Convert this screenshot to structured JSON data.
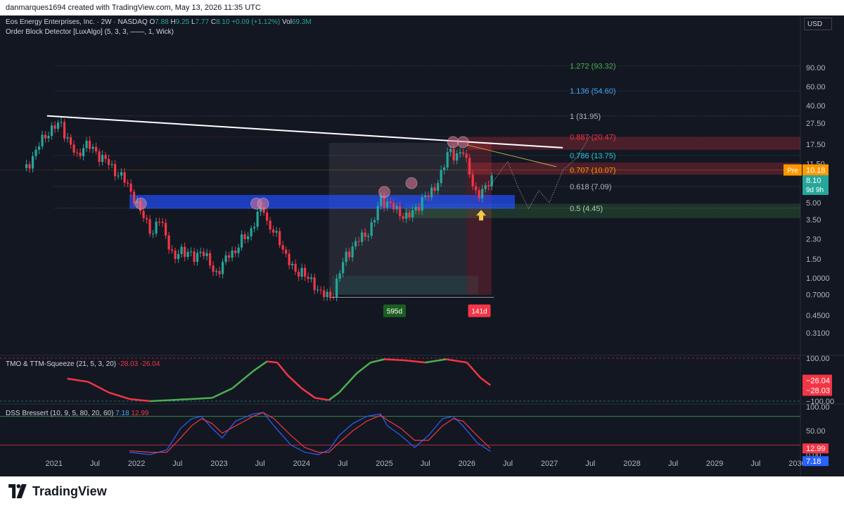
{
  "header": {
    "attribution": "danmarques1694 created with TradingView.com, May 13, 2026 11:35 UTC"
  },
  "legend": {
    "symbol": "Eos Energy Enterprises, Inc. · 2W · NASDAQ",
    "o_label": "O",
    "o_value": "7.88",
    "h_label": "H",
    "h_value": "9.25",
    "l_label": "L",
    "l_value": "7.77",
    "c_label": "C",
    "c_value": "8.10",
    "change": "+0.09 (+1.12%)",
    "vol_label": "Vol",
    "vol_value": "69.3M",
    "indicator": "Order Block Detector [LuxAlgo] (5, 3, 3, ——, 1, Wick)"
  },
  "currency": "USD",
  "footer": {
    "brand": "TradingView"
  },
  "colors": {
    "background": "#131722",
    "up": "#26a69a",
    "down": "#f23645",
    "grid": "#2a2e39",
    "text": "#b2b5be",
    "trendline": "#ffffff"
  },
  "chart_data": [
    {
      "type": "candlestick",
      "name": "price",
      "scale": "log",
      "ylim": [
        0.2,
        150
      ],
      "xlim": [
        "2020-06-01",
        "2030-01-15"
      ],
      "y_ticks": [
        "90.00",
        "60.00",
        "40.00",
        "27.50",
        "17.50",
        "11.50",
        "8.10",
        "5.00",
        "3.50",
        "2.30",
        "1.50",
        "1.0000",
        "0.7000",
        "0.4500",
        "0.3100"
      ],
      "y_tick_values": [
        90,
        60,
        40,
        27.5,
        17.5,
        11.5,
        8.1,
        5,
        3.5,
        2.3,
        1.5,
        1,
        0.7,
        0.45,
        0.31
      ],
      "x_ticks": [
        {
          "label": "2021",
          "date": "2021-01-01"
        },
        {
          "label": "Jul",
          "date": "2021-07-01"
        },
        {
          "label": "2022",
          "date": "2022-01-01"
        },
        {
          "label": "Jul",
          "date": "2022-07-01"
        },
        {
          "label": "2023",
          "date": "2023-01-01"
        },
        {
          "label": "Jul",
          "date": "2023-07-01"
        },
        {
          "label": "2024",
          "date": "2024-01-01"
        },
        {
          "label": "Jul",
          "date": "2024-07-01"
        },
        {
          "label": "2025",
          "date": "2025-01-01"
        },
        {
          "label": "Jul",
          "date": "2025-07-01"
        },
        {
          "label": "2026",
          "date": "2026-01-01"
        },
        {
          "label": "Jul",
          "date": "2026-07-01"
        },
        {
          "label": "2027",
          "date": "2027-01-01"
        },
        {
          "label": "Jul",
          "date": "2027-07-01"
        },
        {
          "label": "2028",
          "date": "2028-01-01"
        },
        {
          "label": "Jul",
          "date": "2028-07-01"
        },
        {
          "label": "2029",
          "date": "2029-01-01"
        },
        {
          "label": "Jul",
          "date": "2029-07-01"
        },
        {
          "label": "2030",
          "date": "2030-01-01"
        }
      ],
      "close_path": [
        [
          "2020-09-01",
          10.5
        ],
        [
          "2020-11-01",
          18
        ],
        [
          "2020-12-15",
          24
        ],
        [
          "2021-02-01",
          27
        ],
        [
          "2021-03-15",
          17
        ],
        [
          "2021-04-15",
          13
        ],
        [
          "2021-05-15",
          18
        ],
        [
          "2021-07-01",
          15
        ],
        [
          "2021-08-15",
          12.5
        ],
        [
          "2021-09-15",
          10.5
        ],
        [
          "2021-11-01",
          8.5
        ],
        [
          "2021-12-15",
          6
        ],
        [
          "2022-01-15",
          4.2
        ],
        [
          "2022-02-15",
          3.3
        ],
        [
          "2022-03-15",
          2.6
        ],
        [
          "2022-04-15",
          3.6
        ],
        [
          "2022-05-15",
          2.4
        ],
        [
          "2022-06-15",
          1.4
        ],
        [
          "2022-07-15",
          1.9
        ],
        [
          "2022-08-15",
          1.7
        ],
        [
          "2022-09-15",
          1.5
        ],
        [
          "2022-10-15",
          1.9
        ],
        [
          "2022-11-15",
          1.4
        ],
        [
          "2022-12-15",
          1.1
        ],
        [
          "2023-01-15",
          1.3
        ],
        [
          "2023-02-15",
          1.7
        ],
        [
          "2023-03-15",
          1.8
        ],
        [
          "2023-04-15",
          2.3
        ],
        [
          "2023-05-15",
          2.6
        ],
        [
          "2023-06-15",
          3.6
        ],
        [
          "2023-07-15",
          4.8
        ],
        [
          "2023-08-01",
          3.3
        ],
        [
          "2023-09-01",
          2.6
        ],
        [
          "2023-10-01",
          2.1
        ],
        [
          "2023-11-01",
          1.5
        ],
        [
          "2023-12-01",
          1.1
        ],
        [
          "2024-01-01",
          1.2
        ],
        [
          "2024-02-01",
          0.95
        ],
        [
          "2024-03-01",
          0.85
        ],
        [
          "2024-04-01",
          0.72
        ],
        [
          "2024-05-01",
          0.65
        ],
        [
          "2024-05-20",
          0.74
        ],
        [
          "2024-06-15",
          1.1
        ],
        [
          "2024-07-15",
          1.6
        ],
        [
          "2024-08-15",
          2.0
        ],
        [
          "2024-09-15",
          2.3
        ],
        [
          "2024-10-15",
          2.6
        ],
        [
          "2024-11-15",
          3.3
        ],
        [
          "2024-12-15",
          5.5
        ],
        [
          "2025-01-15",
          5.0
        ],
        [
          "2025-02-15",
          4.4
        ],
        [
          "2025-03-15",
          4.0
        ],
        [
          "2025-04-15",
          3.6
        ],
        [
          "2025-05-15",
          4.3
        ],
        [
          "2025-06-15",
          5.3
        ],
        [
          "2025-07-15",
          5.8
        ],
        [
          "2025-08-15",
          7.3
        ],
        [
          "2025-09-15",
          9.5
        ],
        [
          "2025-10-15",
          16.5
        ],
        [
          "2025-11-15",
          13
        ],
        [
          "2025-12-15",
          15
        ],
        [
          "2026-01-15",
          10
        ],
        [
          "2026-02-01",
          6.3
        ],
        [
          "2026-02-15",
          5.6
        ],
        [
          "2026-03-01",
          5.9
        ],
        [
          "2026-03-15",
          6.9
        ],
        [
          "2026-04-01",
          7.9
        ],
        [
          "2026-05-01",
          8.1
        ]
      ],
      "last_price": "8.10",
      "countdown": "9d 9h",
      "premarket_label": "Pre",
      "premarket_price": "10.18",
      "fib_levels": [
        {
          "label": "1.272 (93.32)",
          "value": 93.32,
          "color": "#4caf50"
        },
        {
          "label": "1.136 (54.60)",
          "value": 54.6,
          "color": "#42a5f5"
        },
        {
          "label": "1 (31.95)",
          "value": 31.95,
          "color": "#b2b5be"
        },
        {
          "label": "0.887 (20.47)",
          "value": 20.47,
          "color": "#f23645"
        },
        {
          "label": "0.786 (13.75)",
          "value": 13.75,
          "color": "#26c6da"
        },
        {
          "label": "0.707 (10.07)",
          "value": 10.07,
          "color": "#ff9800"
        },
        {
          "label": "0.618 (7.09)",
          "value": 7.09,
          "color": "#b2b5be"
        },
        {
          "label": "0.5 (4.45)",
          "value": 4.45,
          "color": "#a5d6a7"
        }
      ],
      "trendline": {
        "from": [
          "2020-12-01",
          32
        ],
        "to": [
          "2027-03-01",
          16.2
        ]
      },
      "measure_labels": [
        {
          "text": "595d",
          "color": "#1b5e20"
        },
        {
          "text": "141d",
          "color": "#f23645"
        }
      ]
    },
    {
      "type": "line",
      "name": "TMO & TTM-Squeeze",
      "legend": "TMO & TTM-Squeeze (21, 5, 3, 20)",
      "values_shown": [
        "-28.03",
        "-26.04"
      ],
      "y_ticks": [
        "100.00",
        "−100.00"
      ],
      "right_labels": [
        "−26.04",
        "−28.03"
      ],
      "series": [
        {
          "points": [
            [
              "2021-03-01",
              5
            ],
            [
              "2021-06-01",
              -10
            ],
            [
              "2021-09-01",
              -60
            ],
            [
              "2021-12-01",
              -90
            ],
            [
              "2022-03-01",
              -100
            ],
            [
              "2022-06-01",
              -95
            ],
            [
              "2022-09-01",
              -90
            ],
            [
              "2022-12-01",
              -85
            ],
            [
              "2023-03-01",
              -40
            ],
            [
              "2023-06-01",
              40
            ],
            [
              "2023-08-01",
              85
            ],
            [
              "2023-09-15",
              80
            ],
            [
              "2023-11-01",
              20
            ],
            [
              "2024-01-01",
              -40
            ],
            [
              "2024-03-01",
              -85
            ],
            [
              "2024-05-01",
              -95
            ],
            [
              "2024-06-15",
              -60
            ],
            [
              "2024-09-01",
              30
            ],
            [
              "2024-11-01",
              80
            ],
            [
              "2025-01-01",
              95
            ],
            [
              "2025-04-01",
              90
            ],
            [
              "2025-07-01",
              80
            ],
            [
              "2025-10-01",
              95
            ],
            [
              "2026-01-01",
              80
            ],
            [
              "2026-03-01",
              10
            ],
            [
              "2026-04-15",
              -26
            ]
          ]
        }
      ]
    },
    {
      "type": "line",
      "name": "DSS Bressert",
      "legend": "DSS Bressert (10, 9, 5, 80, 20, 60)",
      "values_shown": [
        "7.18",
        "12.99"
      ],
      "y_ticks": [
        "100.00",
        "50.00",
        "0.00"
      ],
      "right_labels": [
        "12.99",
        "7.18"
      ],
      "series": [
        {
          "name": "7.18",
          "color": "#2962ff",
          "points": [
            [
              "2021-12-01",
              5
            ],
            [
              "2022-03-01",
              0
            ],
            [
              "2022-05-15",
              10
            ],
            [
              "2022-07-15",
              55
            ],
            [
              "2022-09-01",
              75
            ],
            [
              "2022-10-15",
              80
            ],
            [
              "2022-12-01",
              55
            ],
            [
              "2023-01-15",
              35
            ],
            [
              "2023-03-15",
              70
            ],
            [
              "2023-06-01",
              85
            ],
            [
              "2023-07-15",
              88
            ],
            [
              "2023-09-01",
              60
            ],
            [
              "2023-11-15",
              20
            ],
            [
              "2024-01-15",
              5
            ],
            [
              "2024-03-15",
              0
            ],
            [
              "2024-05-01",
              10
            ],
            [
              "2024-06-15",
              40
            ],
            [
              "2024-08-15",
              65
            ],
            [
              "2024-10-15",
              80
            ],
            [
              "2024-12-15",
              85
            ],
            [
              "2025-01-15",
              60
            ],
            [
              "2025-03-15",
              40
            ],
            [
              "2025-05-15",
              15
            ],
            [
              "2025-07-15",
              40
            ],
            [
              "2025-09-15",
              75
            ],
            [
              "2025-11-01",
              80
            ],
            [
              "2025-12-15",
              60
            ],
            [
              "2026-02-15",
              25
            ],
            [
              "2026-04-15",
              7
            ]
          ]
        },
        {
          "name": "12.99",
          "color": "#f23645",
          "points": [
            [
              "2021-12-01",
              8
            ],
            [
              "2022-03-01",
              5
            ],
            [
              "2022-05-15",
              5
            ],
            [
              "2022-07-15",
              35
            ],
            [
              "2022-09-01",
              60
            ],
            [
              "2022-10-15",
              75
            ],
            [
              "2022-12-01",
              65
            ],
            [
              "2023-01-15",
              45
            ],
            [
              "2023-03-15",
              60
            ],
            [
              "2023-06-01",
              80
            ],
            [
              "2023-07-15",
              88
            ],
            [
              "2023-09-01",
              75
            ],
            [
              "2023-11-15",
              40
            ],
            [
              "2024-01-15",
              15
            ],
            [
              "2024-03-15",
              5
            ],
            [
              "2024-05-01",
              5
            ],
            [
              "2024-06-15",
              25
            ],
            [
              "2024-08-15",
              50
            ],
            [
              "2024-10-15",
              70
            ],
            [
              "2024-12-15",
              82
            ],
            [
              "2025-01-15",
              72
            ],
            [
              "2025-03-15",
              55
            ],
            [
              "2025-05-15",
              30
            ],
            [
              "2025-07-15",
              30
            ],
            [
              "2025-09-15",
              60
            ],
            [
              "2025-11-01",
              75
            ],
            [
              "2025-12-15",
              70
            ],
            [
              "2026-02-15",
              40
            ],
            [
              "2026-04-15",
              13
            ]
          ]
        }
      ]
    }
  ]
}
